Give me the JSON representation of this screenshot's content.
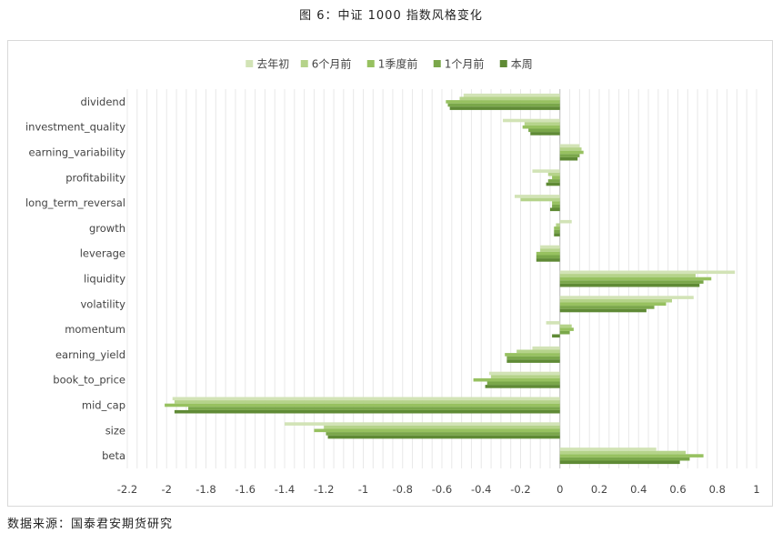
{
  "figure_title": "图 6：中证 1000 指数风格变化",
  "source_note": "数据来源：国泰君安期货研究",
  "colors": [
    "#d2e3b6",
    "#b5d38a",
    "#97c160",
    "#7aa74a",
    "#5f8a35"
  ],
  "chart_data": {
    "type": "bar",
    "orientation": "horizontal",
    "title": "",
    "xlabel": "",
    "ylabel": "",
    "xlim": [
      -2.2,
      1
    ],
    "x_ticks": [
      -2.2,
      -2,
      -1.8,
      -1.6,
      -1.4,
      -1.2,
      -1,
      -0.8,
      -0.6,
      -0.4,
      -0.2,
      0,
      0.2,
      0.4,
      0.6,
      0.8,
      1
    ],
    "grid": "vertical",
    "legend_position": "top",
    "categories": [
      "dividend",
      "investment_quality",
      "earning_variability",
      "profitability",
      "long_term_reversal",
      "growth",
      "leverage",
      "liquidity",
      "volatility",
      "momentum",
      "earning_yield",
      "book_to_price",
      "mid_cap",
      "size",
      "beta"
    ],
    "series": [
      {
        "name": "去年初",
        "values": [
          -0.49,
          -0.29,
          0.1,
          -0.14,
          -0.23,
          0.06,
          -0.1,
          0.89,
          0.68,
          -0.07,
          -0.14,
          -0.36,
          -1.97,
          -1.4,
          0.49
        ]
      },
      {
        "name": "6个月前",
        "values": [
          -0.51,
          -0.18,
          0.11,
          -0.06,
          -0.2,
          -0.02,
          -0.1,
          0.69,
          0.57,
          0.06,
          -0.22,
          -0.35,
          -1.96,
          -1.2,
          0.64
        ]
      },
      {
        "name": "1季度前",
        "values": [
          -0.58,
          -0.19,
          0.12,
          -0.04,
          -0.04,
          -0.03,
          -0.12,
          0.77,
          0.54,
          0.07,
          -0.28,
          -0.44,
          -2.01,
          -1.25,
          0.73
        ]
      },
      {
        "name": "1个月前",
        "values": [
          -0.57,
          -0.16,
          0.1,
          -0.06,
          -0.04,
          -0.03,
          -0.12,
          0.73,
          0.48,
          0.05,
          -0.27,
          -0.37,
          -1.89,
          -1.19,
          0.66
        ]
      },
      {
        "name": "本周",
        "values": [
          -0.56,
          -0.15,
          0.09,
          -0.07,
          -0.05,
          -0.03,
          -0.12,
          0.71,
          0.44,
          -0.04,
          -0.27,
          -0.38,
          -1.96,
          -1.18,
          0.61
        ]
      }
    ]
  }
}
